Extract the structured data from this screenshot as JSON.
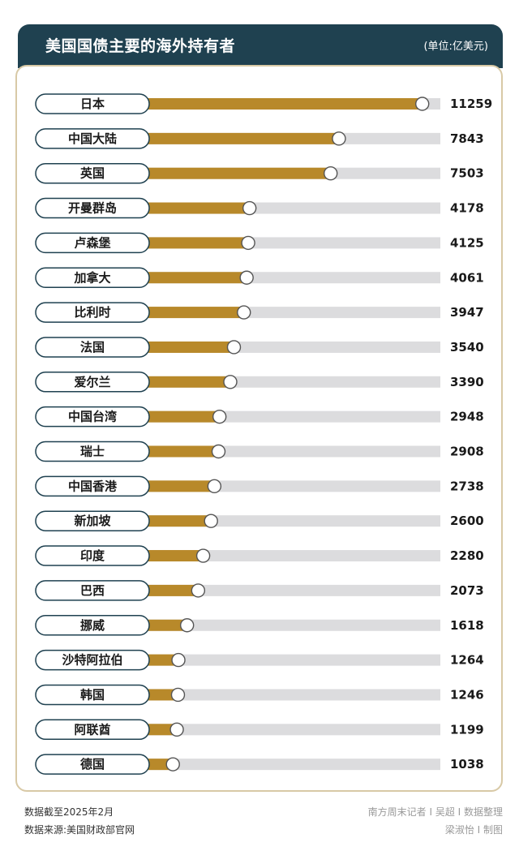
{
  "header": {
    "title": "美国国债主要的海外持有者",
    "unit": "(单位:亿美元)"
  },
  "footer": {
    "date_note": "数据截至2025年2月",
    "source": "数据来源:美国财政部官网",
    "credit_1": "南方周末记者 I 吴超 I 数据整理",
    "credit_2": "梁淑怡 I 制图"
  },
  "colors": {
    "header_bg": "#1f4150",
    "bar_fill": "#b8892a",
    "track": "#dcdcde",
    "panel_border": "#d8c9a6",
    "pill_border": "#1f4150"
  },
  "chart_data": {
    "type": "bar",
    "orientation": "horizontal",
    "categories": [
      "日本",
      "中国大陆",
      "英国",
      "开曼群岛",
      "卢森堡",
      "加拿大",
      "比利时",
      "法国",
      "爱尔兰",
      "中国台湾",
      "瑞士",
      "中国香港",
      "新加坡",
      "印度",
      "巴西",
      "挪威",
      "沙特阿拉伯",
      "韩国",
      "阿联酋",
      "德国"
    ],
    "values": [
      11259,
      7843,
      7503,
      4178,
      4125,
      4061,
      3947,
      3540,
      3390,
      2948,
      2908,
      2738,
      2600,
      2280,
      2073,
      1618,
      1264,
      1246,
      1199,
      1038
    ],
    "value_labels": [
      "11259",
      "7843",
      "7503",
      "4178",
      "4125",
      "4061",
      "3947",
      "3540",
      "3390",
      "2948",
      "2908",
      "2738",
      "2600",
      "2280",
      "2073",
      "1618",
      "1264",
      "1246",
      "1199",
      "1038"
    ],
    "xlim": [
      0,
      12000
    ],
    "grid": false,
    "legend": "none"
  }
}
